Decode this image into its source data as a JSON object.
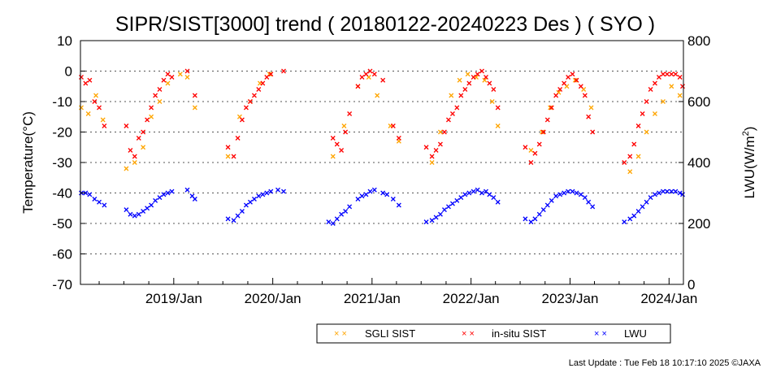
{
  "chart_data": {
    "type": "scatter",
    "title": "SIPR/SIST[3000] trend ( 20180122-20240223 Des ) ( SYO )",
    "ylabel_left": "Temperature(°C)",
    "ylabel_right_main": "LWU(W/m",
    "ylabel_right_sup": "2",
    "ylabel_right_end": ")",
    "ylim_left": [
      -70,
      10
    ],
    "ylim_right": [
      0,
      800
    ],
    "yticks_left": [
      "10",
      "0",
      "-10",
      "-20",
      "-30",
      "-40",
      "-50",
      "-60",
      "-70"
    ],
    "yticks_right": [
      "800",
      "600",
      "400",
      "200",
      "0"
    ],
    "xticks": [
      "2019/Jan",
      "2020/Jan",
      "2021/Jan",
      "2022/Jan",
      "2023/Jan",
      "2024/Jan"
    ],
    "grid": "horizontal dotted",
    "legend_position": "bottom-right",
    "legend": [
      "SGLI SIST",
      "in-situ SIST",
      "LWU"
    ],
    "colors": {
      "sgli": "#ffa500",
      "insitu": "#ff0000",
      "lwu": "#0000ff"
    },
    "series": [
      {
        "name": "SGLI SIST",
        "x": [
          "2018-01-25",
          "2018-02-20",
          "2018-03-20",
          "2018-04-15",
          "2018-07-10",
          "2018-08-10",
          "2018-09-10",
          "2018-10-10",
          "2018-11-10",
          "2018-12-10",
          "2019-01-25",
          "2019-02-20",
          "2019-03-20",
          "2019-07-20",
          "2019-09-01",
          "2019-10-10",
          "2019-11-15",
          "2019-12-20",
          "2020-08-10",
          "2020-09-20",
          "2020-11-10",
          "2020-12-20",
          "2021-01-20",
          "2021-03-10",
          "2021-04-10",
          "2021-08-10",
          "2021-09-10",
          "2021-10-20",
          "2021-11-20",
          "2021-12-20",
          "2022-01-20",
          "2022-02-20",
          "2022-03-20",
          "2022-04-10",
          "2022-08-10",
          "2022-09-20",
          "2022-10-20",
          "2022-11-20",
          "2022-12-20",
          "2023-01-20",
          "2023-02-20",
          "2023-03-20",
          "2023-08-10",
          "2023-09-10",
          "2023-10-10",
          "2023-11-10",
          "2023-12-10",
          "2024-01-10",
          "2024-02-10"
        ],
        "y": [
          -12,
          -14,
          -8,
          -16,
          -32,
          -30,
          -25,
          -15,
          -10,
          -4,
          -1,
          -2,
          -12,
          -28,
          -15,
          -10,
          -4,
          -1,
          -28,
          -18,
          -5,
          -2,
          -8,
          -18,
          -23,
          -30,
          -20,
          -8,
          -3,
          -1,
          -2,
          -3,
          -10,
          -18,
          -26,
          -20,
          -12,
          -7,
          -5,
          -3,
          -6,
          -12,
          -33,
          -28,
          -20,
          -14,
          -10,
          -5,
          -8
        ]
      },
      {
        "name": "in-situ SIST",
        "x": [
          "2018-01-25",
          "2018-02-10",
          "2018-02-25",
          "2018-03-15",
          "2018-04-01",
          "2018-04-20",
          "2018-07-10",
          "2018-07-25",
          "2018-08-10",
          "2018-08-25",
          "2018-09-10",
          "2018-09-25",
          "2018-10-10",
          "2018-10-25",
          "2018-11-10",
          "2018-11-25",
          "2018-12-10",
          "2018-12-25",
          "2019-02-20",
          "2019-03-20",
          "2019-07-20",
          "2019-08-10",
          "2019-08-25",
          "2019-09-10",
          "2019-09-25",
          "2019-10-10",
          "2019-10-25",
          "2019-11-10",
          "2019-11-25",
          "2019-12-10",
          "2019-12-25",
          "2020-02-10",
          "2020-08-10",
          "2020-08-25",
          "2020-09-10",
          "2020-09-25",
          "2020-10-10",
          "2020-11-10",
          "2020-11-25",
          "2020-12-10",
          "2020-12-25",
          "2021-01-10",
          "2021-02-10",
          "2021-03-20",
          "2021-04-10",
          "2021-07-20",
          "2021-08-10",
          "2021-08-25",
          "2021-09-10",
          "2021-09-25",
          "2021-10-10",
          "2021-10-25",
          "2021-11-10",
          "2021-11-25",
          "2021-12-10",
          "2021-12-25",
          "2022-01-10",
          "2022-01-25",
          "2022-02-10",
          "2022-02-25",
          "2022-03-10",
          "2022-03-25",
          "2022-04-10",
          "2022-07-20",
          "2022-08-10",
          "2022-08-25",
          "2022-09-10",
          "2022-09-25",
          "2022-10-10",
          "2022-10-25",
          "2022-11-10",
          "2022-11-25",
          "2022-12-10",
          "2022-12-25",
          "2023-01-10",
          "2023-01-25",
          "2023-02-10",
          "2023-02-25",
          "2023-03-10",
          "2023-03-25",
          "2023-07-20",
          "2023-08-10",
          "2023-08-25",
          "2023-09-10",
          "2023-09-25",
          "2023-10-10",
          "2023-10-25",
          "2023-11-10",
          "2023-11-25",
          "2023-12-10",
          "2023-12-25",
          "2024-01-10",
          "2024-01-25",
          "2024-02-10",
          "2024-02-20"
        ],
        "y": [
          -2,
          -4,
          -3,
          -10,
          -12,
          -18,
          -18,
          -26,
          -28,
          -22,
          -20,
          -16,
          -12,
          -8,
          -6,
          -3,
          -1,
          -2,
          0,
          -8,
          -25,
          -28,
          -22,
          -16,
          -12,
          -10,
          -8,
          -6,
          -4,
          -2,
          -1,
          0,
          -22,
          -24,
          -26,
          -20,
          -14,
          -5,
          -2,
          -1,
          0,
          -1,
          -3,
          -18,
          -22,
          -25,
          -28,
          -26,
          -24,
          -20,
          -16,
          -14,
          -12,
          -8,
          -6,
          -4,
          -2,
          -1,
          0,
          -2,
          -4,
          -6,
          -12,
          -25,
          -30,
          -27,
          -24,
          -20,
          -16,
          -12,
          -8,
          -6,
          -4,
          -2,
          -1,
          -3,
          -5,
          -8,
          -15,
          -20,
          -30,
          -28,
          -24,
          -18,
          -14,
          -10,
          -6,
          -4,
          -2,
          -1,
          -1,
          -1,
          -1,
          -2,
          -5
        ]
      },
      {
        "name": "LWU",
        "x": [
          "2018-01-25",
          "2018-02-10",
          "2018-02-25",
          "2018-03-15",
          "2018-04-01",
          "2018-04-20",
          "2018-07-10",
          "2018-07-25",
          "2018-08-10",
          "2018-08-25",
          "2018-09-10",
          "2018-09-25",
          "2018-10-10",
          "2018-10-25",
          "2018-11-10",
          "2018-11-25",
          "2018-12-10",
          "2018-12-25",
          "2019-02-20",
          "2019-03-10",
          "2019-03-20",
          "2019-07-20",
          "2019-08-10",
          "2019-08-25",
          "2019-09-10",
          "2019-09-25",
          "2019-10-10",
          "2019-10-25",
          "2019-11-10",
          "2019-11-25",
          "2019-12-10",
          "2019-12-25",
          "2020-01-20",
          "2020-02-10",
          "2020-07-25",
          "2020-08-10",
          "2020-08-25",
          "2020-09-10",
          "2020-09-25",
          "2020-10-10",
          "2020-11-10",
          "2020-11-25",
          "2020-12-10",
          "2020-12-25",
          "2021-01-10",
          "2021-02-10",
          "2021-02-25",
          "2021-03-20",
          "2021-04-10",
          "2021-07-20",
          "2021-08-10",
          "2021-08-25",
          "2021-09-10",
          "2021-09-25",
          "2021-10-10",
          "2021-10-25",
          "2021-11-10",
          "2021-11-25",
          "2021-12-10",
          "2021-12-25",
          "2022-01-10",
          "2022-01-25",
          "2022-02-10",
          "2022-02-25",
          "2022-03-10",
          "2022-03-25",
          "2022-04-10",
          "2022-07-20",
          "2022-08-10",
          "2022-08-25",
          "2022-09-10",
          "2022-09-25",
          "2022-10-10",
          "2022-10-25",
          "2022-11-10",
          "2022-11-25",
          "2022-12-10",
          "2022-12-25",
          "2023-01-10",
          "2023-01-25",
          "2023-02-10",
          "2023-02-25",
          "2023-03-10",
          "2023-03-25",
          "2023-07-20",
          "2023-08-10",
          "2023-08-25",
          "2023-09-10",
          "2023-09-25",
          "2023-10-10",
          "2023-10-25",
          "2023-11-10",
          "2023-11-25",
          "2023-12-10",
          "2023-12-25",
          "2024-01-10",
          "2024-01-25",
          "2024-02-10",
          "2024-02-20"
        ],
        "y": [
          300,
          300,
          295,
          280,
          270,
          260,
          245,
          230,
          225,
          230,
          240,
          250,
          260,
          275,
          285,
          295,
          300,
          305,
          310,
          290,
          280,
          215,
          210,
          225,
          240,
          260,
          270,
          280,
          290,
          295,
          300,
          305,
          310,
          305,
          205,
          200,
          215,
          230,
          240,
          255,
          280,
          290,
          295,
          305,
          310,
          300,
          295,
          280,
          260,
          205,
          210,
          220,
          230,
          245,
          255,
          265,
          275,
          285,
          295,
          300,
          305,
          310,
          300,
          305,
          295,
          285,
          270,
          215,
          205,
          215,
          230,
          245,
          260,
          275,
          290,
          295,
          300,
          305,
          305,
          300,
          295,
          285,
          270,
          255,
          205,
          215,
          225,
          240,
          255,
          270,
          285,
          295,
          300,
          305,
          305,
          305,
          305,
          300,
          295
        ]
      }
    ]
  },
  "footer": {
    "last_update": "Last Update : Tue Feb 18 10:17:10 2025  ©JAXA"
  }
}
